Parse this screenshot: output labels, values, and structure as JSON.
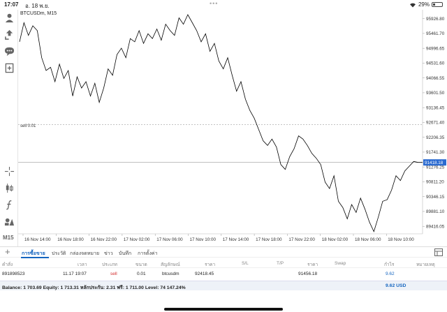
{
  "status_bar": {
    "time": "17:07",
    "date": "อ. 18 พ.ย.",
    "dots": "•••",
    "battery": "29%",
    "battery_level": 0.29
  },
  "toolbar": {
    "icons": [
      "user-icon",
      "trade-arrows-icon",
      "chat-icon",
      "add-chart-icon",
      "crosshair-icon",
      "candlestick-icon",
      "function-icon",
      "objects-icon"
    ],
    "timeframe": "M15"
  },
  "chart": {
    "symbol": "BTCUSDm, M15",
    "order_label": "sell 0.01",
    "current_price": "91418.18",
    "line_color": "#000000",
    "price_label_bg": "#2a6ad0",
    "y_ticks": [
      "95926.80",
      "95461.70",
      "94996.65",
      "94531.60",
      "94066.55",
      "93601.50",
      "93136.45",
      "92671.40",
      "92206.35",
      "91741.30",
      "91276.25",
      "90811.20",
      "90346.15",
      "89881.10",
      "89416.05"
    ],
    "x_ticks": [
      "16 Nov 14:00",
      "16 Nov 18:00",
      "16 Nov 22:00",
      "17 Nov 02:00",
      "17 Nov 06:00",
      "17 Nov 10:00",
      "17 Nov 14:00",
      "17 Nov 18:00",
      "17 Nov 22:00",
      "18 Nov 02:00",
      "18 Nov 06:00",
      "18 Nov 10:00"
    ]
  },
  "chart_data": {
    "type": "line",
    "title": "BTCUSDm, M15",
    "xlabel": "",
    "ylabel": "",
    "ylim": [
      89180,
      96160
    ],
    "grid": false,
    "sell_level": 92600,
    "current_price": 91418.18,
    "x": [
      "16 Nov 13:00",
      "16 Nov 13:30",
      "16 Nov 14:00",
      "16 Nov 14:30",
      "16 Nov 15:00",
      "16 Nov 15:30",
      "16 Nov 16:00",
      "16 Nov 16:30",
      "16 Nov 17:00",
      "16 Nov 17:30",
      "16 Nov 18:00",
      "16 Nov 18:30",
      "16 Nov 19:00",
      "16 Nov 19:30",
      "16 Nov 20:00",
      "16 Nov 20:30",
      "16 Nov 21:00",
      "16 Nov 21:30",
      "16 Nov 22:00",
      "16 Nov 22:30",
      "16 Nov 23:00",
      "16 Nov 23:30",
      "17 Nov 00:00",
      "17 Nov 00:30",
      "17 Nov 01:00",
      "17 Nov 01:30",
      "17 Nov 02:00",
      "17 Nov 02:30",
      "17 Nov 03:00",
      "17 Nov 03:30",
      "17 Nov 04:00",
      "17 Nov 04:30",
      "17 Nov 05:00",
      "17 Nov 05:30",
      "17 Nov 06:00",
      "17 Nov 06:30",
      "17 Nov 07:00",
      "17 Nov 07:30",
      "17 Nov 08:00",
      "17 Nov 08:30",
      "17 Nov 09:00",
      "17 Nov 09:30",
      "17 Nov 10:00",
      "17 Nov 10:30",
      "17 Nov 11:00",
      "17 Nov 11:30",
      "17 Nov 12:00",
      "17 Nov 12:30",
      "17 Nov 13:00",
      "17 Nov 13:30",
      "17 Nov 14:00",
      "17 Nov 14:30",
      "17 Nov 15:00",
      "17 Nov 15:30",
      "17 Nov 16:00",
      "17 Nov 16:30",
      "17 Nov 17:00",
      "17 Nov 17:30",
      "17 Nov 18:00",
      "17 Nov 18:30",
      "17 Nov 19:00",
      "17 Nov 19:30",
      "17 Nov 20:00",
      "17 Nov 20:30",
      "17 Nov 21:00",
      "17 Nov 21:30",
      "17 Nov 22:00",
      "17 Nov 22:30",
      "17 Nov 23:00",
      "17 Nov 23:30",
      "18 Nov 00:00",
      "18 Nov 00:30",
      "18 Nov 01:00",
      "18 Nov 01:30",
      "18 Nov 02:00",
      "18 Nov 02:30",
      "18 Nov 03:00",
      "18 Nov 03:30",
      "18 Nov 04:00",
      "18 Nov 04:30",
      "18 Nov 05:00",
      "18 Nov 05:30",
      "18 Nov 06:00",
      "18 Nov 06:30",
      "18 Nov 07:00",
      "18 Nov 07:30",
      "18 Nov 08:00",
      "18 Nov 08:30",
      "18 Nov 09:00",
      "18 Nov 09:30",
      "18 Nov 10:00",
      "18 Nov 10:30"
    ],
    "values": [
      95200,
      95800,
      95400,
      95700,
      95550,
      94700,
      94300,
      94400,
      93950,
      94500,
      94050,
      94300,
      93500,
      94100,
      93750,
      93950,
      93500,
      93900,
      93300,
      93750,
      94350,
      94150,
      94800,
      95000,
      94700,
      95300,
      95200,
      95550,
      95150,
      95450,
      95300,
      95600,
      95250,
      95750,
      95550,
      95400,
      95950,
      95750,
      96050,
      95800,
      95550,
      95200,
      95450,
      94900,
      95150,
      94600,
      94350,
      94700,
      94150,
      93650,
      93950,
      93400,
      93050,
      92800,
      92450,
      92100,
      91950,
      92150,
      91900,
      91350,
      91200,
      91600,
      91850,
      92250,
      92150,
      91950,
      91700,
      91550,
      91350,
      90800,
      90600,
      91000,
      90200,
      90000,
      89650,
      90100,
      89850,
      90300,
      89950,
      89550,
      89250,
      89700,
      90200,
      90250,
      90550,
      91000,
      90850,
      91150,
      91300,
      91450,
      91418.18,
      91418.18
    ]
  },
  "tabs": {
    "items": [
      "การซื้อขาย",
      "ประวัติ",
      "กล่องจดหมาย",
      "ข่าว",
      "บันทึก",
      "การตั้งค่า"
    ]
  },
  "table": {
    "headers": [
      "คำสั่ง",
      "เวลา",
      "ประเภท",
      "ขนาด",
      "สัญลักษณ์",
      "ราคา",
      "S/L",
      "T/P",
      "ราคา",
      "Swap",
      "กำไร",
      "หมายเหตุ"
    ],
    "row": {
      "order": "891898523",
      "time": "11.17 19:07",
      "type": "sell",
      "size": "0.01",
      "symbol": "btcusdm",
      "price": "92418.45",
      "sl": "",
      "tp": "",
      "current_price": "91456.18",
      "swap": "",
      "profit": "9.62",
      "comment": ""
    }
  },
  "balance": {
    "text": "Balance: 1 703.69 Equity: 1 713.31 หลักประกัน: 2.31 ฟรี: 1 711.00 Level: 74 147.24%",
    "total": "9.62  USD"
  }
}
